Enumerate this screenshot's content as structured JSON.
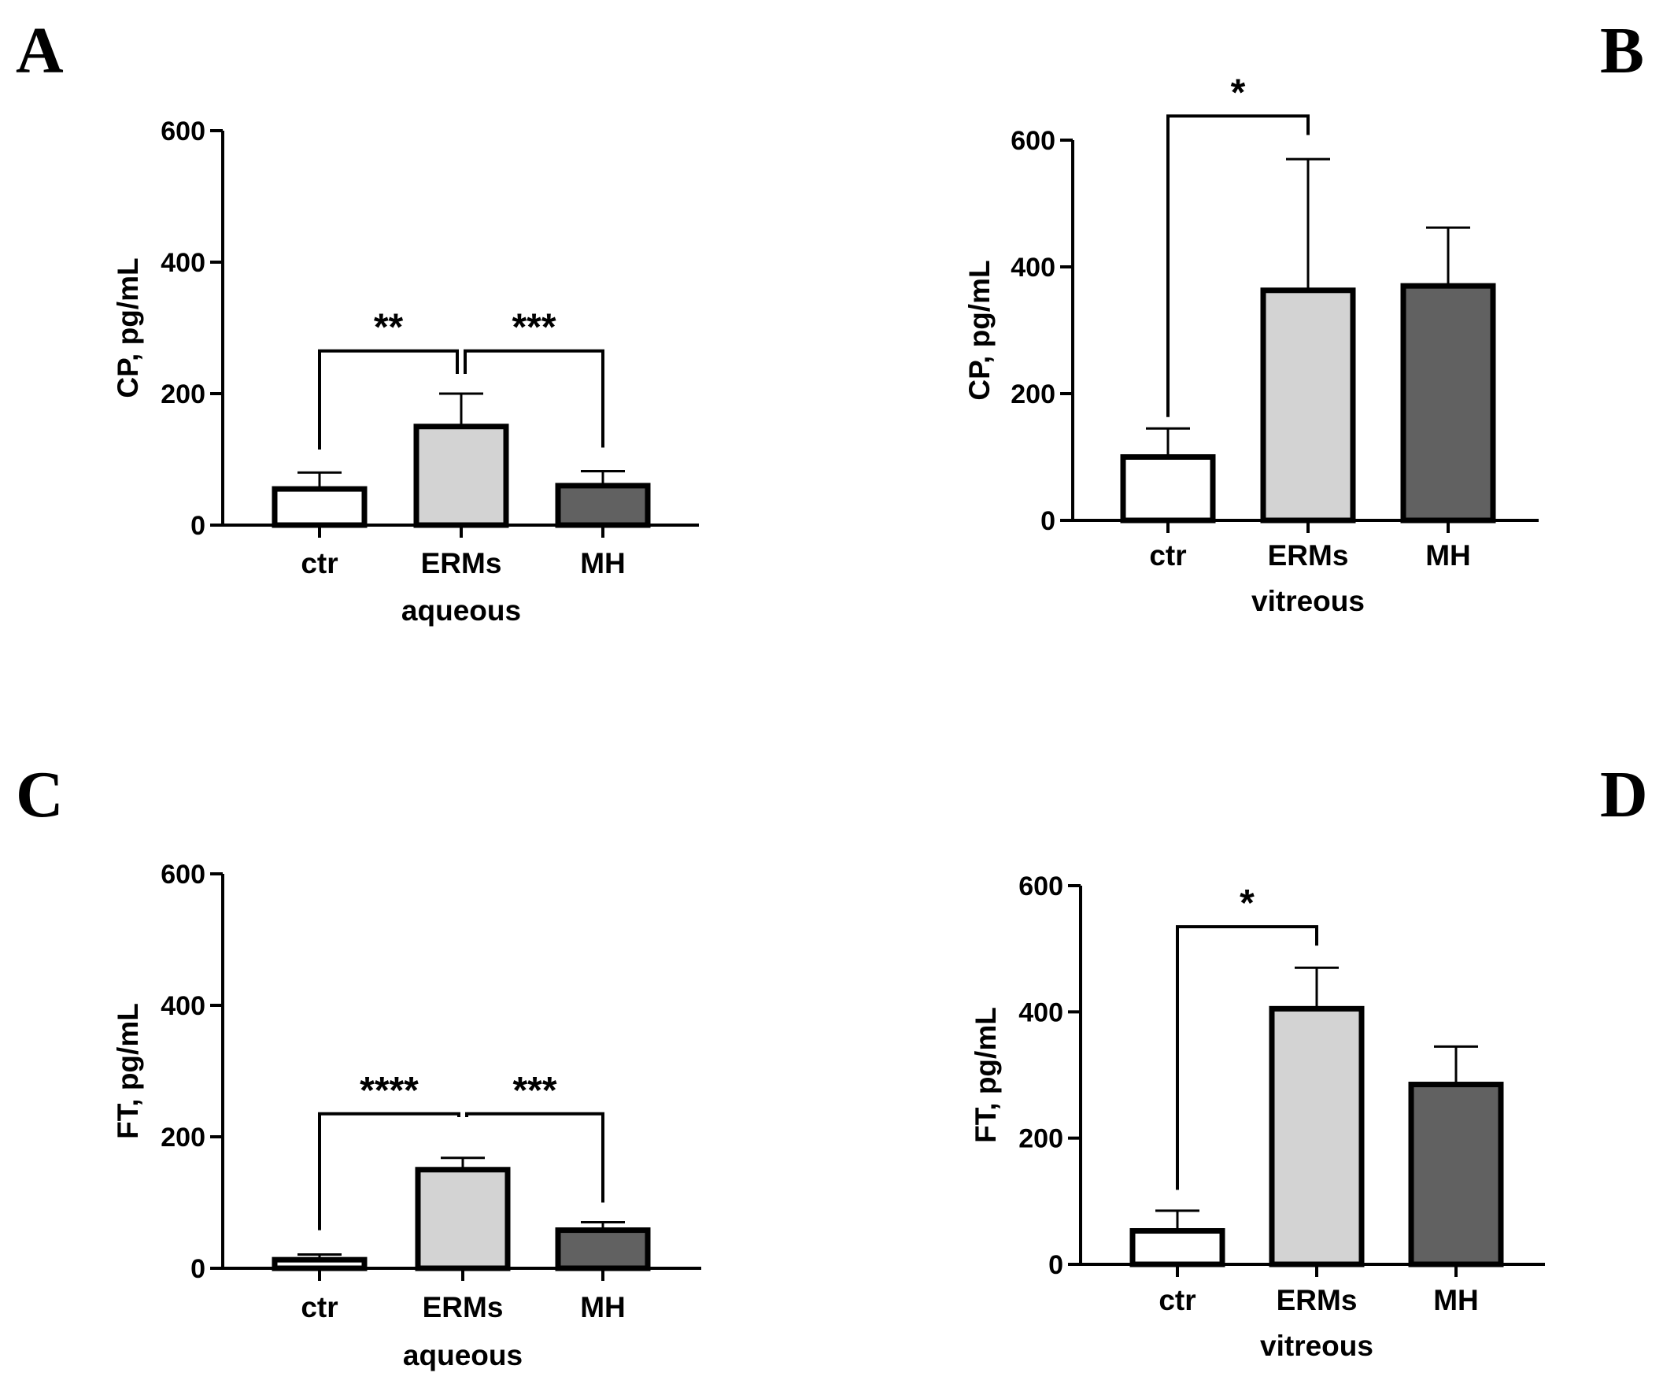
{
  "figure_label": "Four-panel bar chart figure",
  "colors": {
    "ctr": "#ffffff",
    "ERMs": "#d3d3d3",
    "MH": "#616161",
    "stroke": "#000000"
  },
  "chart_data": [
    {
      "panel": "A",
      "type": "bar",
      "categories": [
        "ctr",
        "ERMs",
        "MH"
      ],
      "values": [
        55,
        150,
        60
      ],
      "errors": [
        25,
        50,
        22
      ],
      "ylabel": "CP, pg/mL",
      "xlabel": "aqueous",
      "ylim": [
        0,
        600
      ],
      "yticks": [
        0,
        200,
        400,
        600
      ],
      "significance": [
        {
          "from": 0,
          "to": 1,
          "label": "**",
          "bar_y": 265,
          "left_end": 115,
          "right_end": 230
        },
        {
          "from": 1,
          "to": 2,
          "label": "***",
          "bar_y": 265,
          "left_end": 230,
          "right_end": 118
        }
      ]
    },
    {
      "panel": "B",
      "type": "bar",
      "categories": [
        "ctr",
        "ERMs",
        "MH"
      ],
      "values": [
        100,
        363,
        370
      ],
      "errors": [
        45,
        207,
        92
      ],
      "ylabel": "CP, pg/mL",
      "xlabel": "vitreous",
      "ylim": [
        0,
        600
      ],
      "yticks": [
        0,
        200,
        400,
        600
      ],
      "significance": [
        {
          "from": 0,
          "to": 1,
          "label": "*",
          "bar_y": 638,
          "left_end": 163,
          "right_end": 608
        }
      ]
    },
    {
      "panel": "C",
      "type": "bar",
      "categories": [
        "ctr",
        "ERMs",
        "MH"
      ],
      "values": [
        13,
        150,
        58
      ],
      "errors": [
        8,
        18,
        12
      ],
      "ylabel": "FT, pg/mL",
      "xlabel": "aqueous",
      "ylim": [
        0,
        600
      ],
      "yticks": [
        0,
        200,
        400,
        600
      ],
      "significance": [
        {
          "from": 0,
          "to": 1,
          "label": "****",
          "bar_y": 235,
          "left_end": 58,
          "right_end": 230
        },
        {
          "from": 1,
          "to": 2,
          "label": "***",
          "bar_y": 235,
          "left_end": 230,
          "right_end": 100
        }
      ]
    },
    {
      "panel": "D",
      "type": "bar",
      "categories": [
        "ctr",
        "ERMs",
        "MH"
      ],
      "values": [
        53,
        405,
        285
      ],
      "errors": [
        32,
        65,
        60
      ],
      "ylabel": "FT, pg/mL",
      "xlabel": "vitreous",
      "ylim": [
        0,
        600
      ],
      "yticks": [
        0,
        200,
        400,
        600
      ],
      "significance": [
        {
          "from": 0,
          "to": 1,
          "label": "*",
          "bar_y": 535,
          "left_end": 118,
          "right_end": 505
        }
      ]
    }
  ]
}
